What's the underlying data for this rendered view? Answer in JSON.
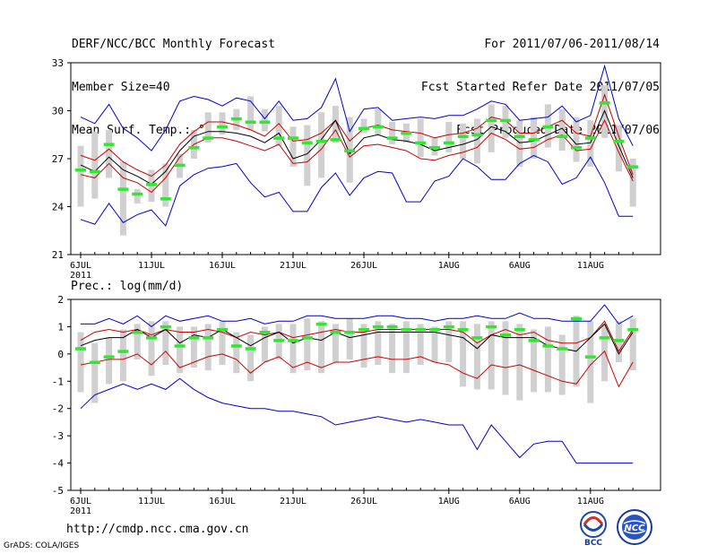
{
  "header": {
    "title": "DERF/NCC/BCC Monthly Forecast",
    "member_size": "Member Size=40",
    "variable1": "Mean Surf. Temp.: °C",
    "period": "For 2011/07/06-2011/08/14",
    "started": "Fcst Started Refer Date 2011/07/05",
    "produced": "Fcst Produced Date 2011/07/06"
  },
  "footer": {
    "url": "http://cmdp.ncc.cma.gov.cn",
    "credit": "GrADS: COLA/IGES",
    "logo_bcc_text": "BCC",
    "logo_ncc_text": "NCC"
  },
  "colors": {
    "max_min": "#0000cc",
    "pct": "#cc0000",
    "mean": "#000000",
    "member": "#33e633",
    "spread": "#d0d0d0"
  },
  "chart_data": [
    {
      "type": "line",
      "title": "Mean Surf. Temp.: °C",
      "year_label": "2011",
      "x_tick_labels": [
        "6JUL",
        "11JUL",
        "16JUL",
        "21JUL",
        "26JUL",
        "1AUG",
        "6AUG",
        "11AUG"
      ],
      "x_tick_days": [
        0,
        5,
        10,
        15,
        20,
        26,
        31,
        36
      ],
      "ylim": [
        21,
        33
      ],
      "y_ticks": [
        21,
        24,
        27,
        30,
        33
      ],
      "series": [
        {
          "name": "max",
          "values": [
            29.6,
            29.2,
            30.4,
            28.9,
            28.3,
            27.5,
            28.8,
            30.6,
            30.9,
            30.7,
            30.3,
            30.8,
            30.6,
            29.5,
            30.6,
            29.4,
            29.5,
            30.2,
            32.0,
            28.7,
            30.1,
            30.2,
            29.4,
            29.5,
            29.6,
            29.5,
            29.7,
            29.7,
            30.1,
            30.6,
            30.4,
            29.4,
            29.5,
            29.6,
            30.3,
            29.3,
            29.7,
            32.8,
            29.5,
            27.8
          ]
        },
        {
          "name": "upper",
          "values": [
            27.2,
            26.9,
            27.6,
            26.8,
            26.3,
            25.9,
            26.6,
            27.9,
            28.7,
            29.3,
            29.3,
            29.1,
            28.8,
            28.4,
            29.2,
            28.1,
            28.2,
            28.6,
            29.4,
            28.1,
            28.9,
            29.1,
            28.8,
            28.7,
            28.6,
            28.3,
            28.5,
            28.6,
            28.9,
            29.6,
            29.4,
            28.6,
            28.6,
            29.0,
            29.4,
            28.6,
            28.4,
            31.0,
            28.4,
            26.0
          ]
        },
        {
          "name": "mean",
          "values": [
            26.6,
            26.2,
            27.1,
            26.3,
            25.9,
            25.4,
            26.2,
            27.5,
            28.4,
            28.7,
            28.7,
            28.6,
            28.4,
            28.0,
            28.6,
            27.0,
            27.3,
            28.2,
            29.4,
            27.3,
            28.3,
            28.5,
            28.2,
            28.1,
            27.9,
            27.5,
            27.7,
            27.9,
            28.2,
            29.0,
            28.7,
            28.0,
            28.1,
            28.5,
            28.9,
            27.9,
            28.0,
            30.0,
            27.8,
            25.8
          ]
        },
        {
          "name": "lower",
          "values": [
            26.0,
            25.8,
            26.7,
            25.8,
            25.5,
            24.9,
            25.8,
            27.1,
            27.9,
            28.3,
            28.3,
            28.1,
            27.8,
            27.5,
            27.9,
            26.7,
            26.8,
            27.6,
            28.8,
            27.1,
            27.8,
            27.9,
            27.7,
            27.5,
            27.0,
            26.9,
            27.2,
            27.4,
            27.7,
            28.6,
            28.2,
            27.6,
            27.7,
            28.2,
            28.5,
            27.5,
            27.6,
            29.4,
            27.4,
            25.6
          ]
        },
        {
          "name": "min",
          "values": [
            23.2,
            22.9,
            24.2,
            23.0,
            23.5,
            23.8,
            22.8,
            25.3,
            26.0,
            26.4,
            26.5,
            26.7,
            25.5,
            24.6,
            24.9,
            23.7,
            23.7,
            25.2,
            26.1,
            24.7,
            25.8,
            26.2,
            26.1,
            24.3,
            24.3,
            25.6,
            25.9,
            27.0,
            26.5,
            25.7,
            25.7,
            26.7,
            27.2,
            26.8,
            25.4,
            25.8,
            27.1,
            25.5,
            23.4,
            23.4
          ]
        }
      ],
      "member_values": [
        26.3,
        26.2,
        27.9,
        25.1,
        24.8,
        25.4,
        24.5,
        26.6,
        27.7,
        28.3,
        29.0,
        29.5,
        29.3,
        29.3,
        28.3,
        28.3,
        28.0,
        28.1,
        28.2,
        27.5,
        28.9,
        29.0,
        28.3,
        28.6,
        28.0,
        27.7,
        28.0,
        28.4,
        28.5,
        29.4,
        29.4,
        28.4,
        28.2,
        29.0,
        28.4,
        27.7,
        28.3,
        30.5,
        28.1,
        26.5
      ],
      "spread_low": [
        24.0,
        24.5,
        25.8,
        22.2,
        24.2,
        24.3,
        24.0,
        25.8,
        27.0,
        28.0,
        28.5,
        28.8,
        28.8,
        28.7,
        27.8,
        26.5,
        25.3,
        25.8,
        28.0,
        25.5,
        28.6,
        28.5,
        27.9,
        28.0,
        27.1,
        27.2,
        27.4,
        27.0,
        26.7,
        27.4,
        28.3,
        26.5,
        27.0,
        27.7,
        27.5,
        26.8,
        26.5,
        28.3,
        26.2,
        24.0
      ],
      "spread_high": [
        27.8,
        28.7,
        28.8,
        26.8,
        25.1,
        26.3,
        26.7,
        27.3,
        28.8,
        29.9,
        29.9,
        30.1,
        30.9,
        30.1,
        30.3,
        29.0,
        29.1,
        29.9,
        30.3,
        29.6,
        29.5,
        30.1,
        29.3,
        29.2,
        29.5,
        28.3,
        29.3,
        29.2,
        29.5,
        30.4,
        30.3,
        29.4,
        29.6,
        30.4,
        30.1,
        29.6,
        29.4,
        31.6,
        29.1,
        27.0
      ]
    },
    {
      "type": "line",
      "title": "Prec.: log(mm/d)",
      "year_label": "2011",
      "x_tick_labels": [
        "6JUL",
        "11JUL",
        "16JUL",
        "21JUL",
        "26JUL",
        "1AUG",
        "6AUG",
        "11AUG"
      ],
      "x_tick_days": [
        0,
        5,
        10,
        15,
        20,
        26,
        31,
        36
      ],
      "ylim": [
        -5,
        2
      ],
      "y_ticks": [
        -5,
        -4,
        -3,
        -2,
        -1,
        0,
        1,
        2
      ],
      "series": [
        {
          "name": "max",
          "values": [
            1.1,
            1.1,
            1.3,
            1.1,
            1.4,
            1.0,
            1.4,
            1.2,
            1.3,
            1.4,
            1.2,
            1.2,
            1.3,
            1.1,
            1.2,
            1.2,
            1.4,
            1.4,
            1.3,
            1.3,
            1.3,
            1.4,
            1.4,
            1.3,
            1.3,
            1.2,
            1.3,
            1.3,
            1.4,
            1.3,
            1.3,
            1.5,
            1.3,
            1.3,
            1.2,
            1.2,
            1.2,
            1.8,
            1.1,
            1.4
          ]
        },
        {
          "name": "upper",
          "values": [
            0.5,
            0.8,
            0.9,
            0.8,
            0.9,
            0.7,
            0.9,
            0.8,
            0.8,
            0.9,
            0.8,
            0.6,
            0.8,
            0.7,
            0.8,
            0.6,
            0.7,
            0.8,
            0.9,
            0.8,
            0.8,
            0.9,
            0.9,
            0.9,
            0.9,
            0.9,
            0.9,
            0.8,
            0.4,
            0.7,
            0.9,
            0.7,
            0.8,
            0.5,
            0.4,
            0.4,
            0.6,
            1.2,
            0.1,
            0.9
          ]
        },
        {
          "name": "mean",
          "values": [
            0.3,
            0.5,
            0.6,
            0.6,
            0.9,
            0.6,
            0.9,
            0.4,
            0.7,
            0.6,
            0.9,
            0.6,
            0.3,
            0.6,
            0.8,
            0.4,
            0.6,
            0.5,
            0.8,
            0.6,
            0.7,
            0.8,
            0.8,
            0.8,
            0.8,
            0.8,
            0.7,
            0.6,
            0.2,
            0.7,
            0.6,
            0.6,
            0.6,
            0.3,
            0.2,
            0.1,
            0.6,
            1.1,
            0.0,
            0.8
          ]
        },
        {
          "name": "lower",
          "values": [
            -0.4,
            -0.3,
            -0.2,
            -0.2,
            0.0,
            -0.4,
            0.1,
            -0.5,
            -0.3,
            -0.1,
            0.0,
            -0.2,
            -0.7,
            -0.3,
            -0.1,
            -0.5,
            -0.3,
            -0.5,
            -0.3,
            -0.3,
            -0.2,
            -0.1,
            -0.2,
            -0.2,
            -0.1,
            -0.3,
            -0.4,
            -0.7,
            -0.9,
            -0.4,
            -0.5,
            -0.4,
            -0.6,
            -0.8,
            -1.0,
            -1.1,
            -0.4,
            0.1,
            -1.2,
            -0.3
          ]
        },
        {
          "name": "min",
          "values": [
            -2.0,
            -1.5,
            -1.3,
            -1.1,
            -1.3,
            -1.1,
            -1.3,
            -0.9,
            -1.3,
            -1.6,
            -1.8,
            -1.9,
            -2.0,
            -2.0,
            -2.1,
            -2.1,
            -2.2,
            -2.3,
            -2.6,
            -2.5,
            -2.4,
            -2.3,
            -2.4,
            -2.5,
            -2.4,
            -2.5,
            -2.6,
            -2.6,
            -3.5,
            -2.6,
            -3.2,
            -3.8,
            -3.3,
            -3.2,
            -3.2,
            -4.0,
            -4.0,
            -4.0,
            -4.0,
            -4.0
          ]
        }
      ],
      "member_values": [
        0.2,
        -0.3,
        -0.1,
        0.1,
        0.8,
        0.6,
        1.0,
        0.3,
        0.6,
        0.6,
        0.9,
        0.3,
        0.2,
        0.8,
        0.5,
        0.5,
        0.6,
        1.1,
        0.8,
        0.8,
        0.9,
        1.0,
        1.0,
        0.9,
        0.9,
        0.9,
        1.0,
        0.9,
        0.6,
        1.0,
        0.7,
        0.9,
        0.5,
        0.3,
        0.2,
        1.3,
        -0.1,
        0.6,
        0.5,
        0.9
      ],
      "spread_low": [
        -1.4,
        -1.8,
        -1.1,
        -1.0,
        -0.2,
        -0.8,
        -0.4,
        -0.7,
        -0.5,
        -0.6,
        -0.4,
        -0.7,
        -1.0,
        -0.3,
        -0.2,
        -0.7,
        -0.6,
        -0.7,
        -0.3,
        -0.2,
        -0.5,
        -0.4,
        -0.7,
        -0.7,
        -0.4,
        -0.3,
        -0.3,
        -1.2,
        -1.3,
        -1.3,
        -1.5,
        -1.7,
        -1.4,
        -1.4,
        -1.5,
        -1.2,
        -1.8,
        -1.0,
        -0.3,
        -0.6
      ],
      "spread_high": [
        0.8,
        0.4,
        0.6,
        0.9,
        1.1,
        1.2,
        1.2,
        1.0,
        1.0,
        1.1,
        1.2,
        0.8,
        0.7,
        1.0,
        1.1,
        1.1,
        1.3,
        1.2,
        1.1,
        1.3,
        1.1,
        1.2,
        1.1,
        1.2,
        1.1,
        1.0,
        1.2,
        1.2,
        1.1,
        1.2,
        1.2,
        1.1,
        0.9,
        1.0,
        0.7,
        1.4,
        1.2,
        1.1,
        1.2,
        1.3
      ]
    }
  ]
}
